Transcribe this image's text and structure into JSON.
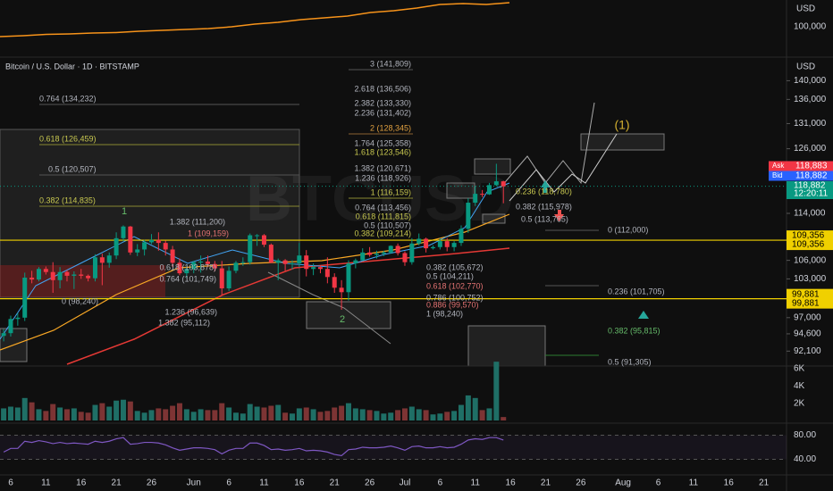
{
  "chart_data": [
    {
      "type": "line",
      "unit": "USD",
      "color": "#f7931a",
      "values": [
        89000,
        90000,
        91500,
        92000,
        93000,
        93500,
        95000,
        96000,
        97000,
        98000,
        100000,
        103000,
        105000,
        108000,
        110000,
        112000,
        116000,
        118000,
        121000,
        125000,
        126000,
        125000,
        127000
      ],
      "ylim": [
        85000,
        130000
      ],
      "yticks": [
        {
          "value": 100000,
          "label": "100,000"
        }
      ]
    },
    {
      "type": "candlestick",
      "title": "Bitcoin / U.S. Dollar · 1D · BITSTAMP",
      "watermark": "BTCUSD",
      "unit": "USD",
      "log_scale": true,
      "up_color": "#089981",
      "down_color": "#f23645",
      "categories": [
        null,
        "6",
        null,
        null,
        null,
        null,
        "11",
        null,
        null,
        null,
        null,
        "16",
        null,
        null,
        null,
        null,
        "21",
        null,
        null,
        null,
        null,
        "26",
        null,
        null,
        null,
        null,
        null,
        "Jun",
        null,
        null,
        null,
        null,
        "6",
        null,
        null,
        null,
        null,
        "11",
        null,
        null,
        null,
        null,
        "16",
        null,
        null,
        null,
        null,
        "21",
        null,
        null,
        null,
        null,
        "26",
        null,
        null,
        null,
        null,
        "Jul",
        null,
        null,
        null,
        null,
        "6",
        null,
        null,
        null,
        null,
        "11",
        null,
        null,
        null,
        null,
        "16",
        null,
        null,
        null,
        null,
        "21",
        null,
        null,
        null,
        null,
        "26",
        null,
        null,
        null,
        null,
        null,
        "Aug",
        null,
        null,
        null,
        null,
        "6",
        null,
        null,
        null,
        null,
        "11",
        null,
        null,
        null,
        null,
        "16",
        null,
        null,
        null,
        null,
        "21"
      ],
      "ohlc": [
        [
          94300,
          95300,
          93500,
          94700
        ],
        [
          94700,
          97300,
          94200,
          96800
        ],
        [
          96800,
          97700,
          95800,
          97000
        ],
        [
          97000,
          104000,
          96500,
          103200
        ],
        [
          103200,
          104300,
          102300,
          102900
        ],
        [
          102900,
          104900,
          102600,
          104600
        ],
        [
          104600,
          105000,
          103700,
          104100
        ],
        [
          104100,
          105700,
          100800,
          102800
        ],
        [
          102800,
          104900,
          101500,
          104100
        ],
        [
          104100,
          104400,
          102600,
          103500
        ],
        [
          103500,
          104200,
          101400,
          103700
        ],
        [
          103700,
          104600,
          103000,
          103500
        ],
        [
          103500,
          103700,
          102600,
          103100
        ],
        [
          103100,
          107000,
          102600,
          106500
        ],
        [
          106500,
          107100,
          102000,
          105600
        ],
        [
          105600,
          107300,
          104800,
          106800
        ],
        [
          106800,
          110700,
          106200,
          109700
        ],
        [
          109700,
          111900,
          109200,
          111700
        ],
        [
          111700,
          111800,
          106900,
          107300
        ],
        [
          107300,
          108700,
          106700,
          107800
        ],
        [
          107800,
          109400,
          106800,
          109000
        ],
        [
          109000,
          110400,
          108700,
          109400
        ],
        [
          109400,
          110700,
          107600,
          108900
        ],
        [
          108900,
          109300,
          106800,
          107800
        ],
        [
          107800,
          108400,
          104900,
          105600
        ],
        [
          105600,
          106300,
          103600,
          103900
        ],
        [
          103900,
          104900,
          103100,
          104600
        ],
        [
          104600,
          105900,
          103900,
          105700
        ],
        [
          105700,
          106800,
          104000,
          105800
        ],
        [
          105800,
          106800,
          104900,
          105400
        ],
        [
          105400,
          105900,
          104200,
          104700
        ],
        [
          104700,
          105900,
          100400,
          101500
        ],
        [
          101500,
          105000,
          101100,
          104300
        ],
        [
          104300,
          105900,
          103900,
          105600
        ],
        [
          105600,
          106500,
          105100,
          105700
        ],
        [
          105700,
          110500,
          105300,
          110200
        ],
        [
          110200,
          110400,
          108400,
          110200
        ],
        [
          110200,
          110400,
          108200,
          108600
        ],
        [
          108600,
          108800,
          105600,
          105600
        ],
        [
          105600,
          106300,
          102800,
          106000
        ],
        [
          106000,
          106200,
          104300,
          105400
        ],
        [
          105400,
          106000,
          104500,
          105500
        ],
        [
          105500,
          108900,
          104900,
          106800
        ],
        [
          106800,
          107700,
          103400,
          104600
        ],
        [
          104600,
          105500,
          103600,
          104900
        ],
        [
          104900,
          105200,
          103900,
          104600
        ],
        [
          104600,
          106500,
          102300,
          103300
        ],
        [
          103300,
          103900,
          100800,
          101600
        ],
        [
          101600,
          102800,
          98200,
          100900
        ],
        [
          100900,
          106000,
          99600,
          105500
        ],
        [
          105500,
          106300,
          104700,
          106000
        ],
        [
          106000,
          108000,
          105900,
          107300
        ],
        [
          107300,
          108200,
          106600,
          106900
        ],
        [
          106900,
          107600,
          106300,
          107100
        ],
        [
          107100,
          107600,
          106700,
          107300
        ],
        [
          107300,
          108500,
          107100,
          108400
        ],
        [
          108400,
          108800,
          106800,
          107200
        ],
        [
          107200,
          107500,
          105100,
          105700
        ],
        [
          105700,
          109700,
          105300,
          108800
        ],
        [
          108800,
          110500,
          108500,
          109600
        ],
        [
          109600,
          109800,
          107300,
          108000
        ],
        [
          108000,
          108500,
          107800,
          108200
        ],
        [
          108200,
          109700,
          107800,
          109200
        ],
        [
          109200,
          109700,
          107500,
          108200
        ],
        [
          108200,
          109200,
          107500,
          108900
        ],
        [
          108900,
          111900,
          108400,
          111300
        ],
        [
          111300,
          116700,
          110600,
          115900
        ],
        [
          115900,
          118900,
          115300,
          117500
        ],
        [
          117500,
          118200,
          116900,
          117400
        ],
        [
          117400,
          119500,
          117300,
          119100
        ],
        [
          119100,
          123100,
          118900,
          119800
        ],
        [
          119800,
          119900,
          115800,
          118883
        ],
        null,
        null,
        null,
        null,
        null,
        null,
        null,
        null,
        null,
        null,
        null,
        null,
        null,
        null,
        null,
        null,
        null,
        null,
        null,
        null,
        null,
        null,
        null,
        null,
        null,
        null,
        null,
        null,
        null,
        null,
        null,
        null,
        null,
        null,
        null,
        null,
        null
      ],
      "ylim": [
        90000,
        145000
      ],
      "yticks": [
        {
          "value": 140000,
          "label": "140,000"
        },
        {
          "value": 136000,
          "label": "136,000"
        },
        {
          "value": 131000,
          "label": "131,000"
        },
        {
          "value": 126000,
          "label": "126,000"
        },
        {
          "value": 114000,
          "label": "114,000"
        },
        {
          "value": 106000,
          "label": "106,000"
        },
        {
          "value": 103000,
          "label": "103,000"
        },
        {
          "value": 97000,
          "label": "97,000"
        },
        {
          "value": 94600,
          "label": "94,600"
        },
        {
          "value": 92100,
          "label": "92,100"
        }
      ],
      "price_lines": [
        {
          "value": 109356,
          "label": "109,356",
          "color": "#f0d000"
        },
        {
          "value": 99881,
          "label": "99,881",
          "color": "#f0d000"
        }
      ],
      "quotes": [
        {
          "name": "Ask",
          "value": 118883,
          "label": "118,883",
          "color": "#f23645"
        },
        {
          "name": "Bid",
          "value": 118882,
          "label": "118,882",
          "color": "#2962ff"
        }
      ],
      "last": {
        "value": 118882,
        "label": "118,882",
        "clock": "12:20:11",
        "color": "#089981"
      },
      "annotations": [
        "0.764 (134,232)",
        "0.618 (126,459)",
        "0.5 (120,507)",
        "0.382 (114,835)",
        "3 (141,809)",
        "2.618 (136,506)",
        "2.382 (133,330)",
        "2.236 (131,402)",
        "2 (128,345)",
        "1.764 (125,358)",
        "1.618 (123,546)",
        "1.382 (120,671)",
        "1.236 (118,926)",
        "1 (116,159)",
        "0.764 (113,456)",
        "0.618 (111,815)",
        "0.5 (110,507)",
        "0.382 (109,214)",
        "0.382 (105,672)",
        "0.5 (104,211)",
        "0.618 (102,770)",
        "0.786 (100,752)",
        "0.886 (99,570)",
        "1 (98,240)",
        "1.382 (111,200)",
        "1 (109,159)",
        "0.618 (103,878)",
        "0.764 (101,749)",
        "0 (98,240)",
        "1.236 (96,639)",
        "1.382 (95,112)",
        "0.236 (118,780)",
        "0.382 (115,978)",
        "0.5 (113,765)",
        "0 (112,000)",
        "0.236 (101,705)",
        "0.382 (95,815)",
        "0.5 (91,305)"
      ],
      "wave_labels": [
        "1",
        "2",
        "(1)"
      ]
    },
    {
      "type": "bar",
      "up_color": "#1f6f66",
      "down_color": "#7d3434",
      "values": [
        1400,
        1600,
        1500,
        2600,
        2100,
        1300,
        1100,
        1900,
        1500,
        1300,
        1400,
        1000,
        900,
        1800,
        2000,
        1600,
        2300,
        2400,
        2200,
        1100,
        900,
        1200,
        1400,
        1300,
        1700,
        2000,
        1300,
        1000,
        1300,
        1200,
        1200,
        2000,
        1500,
        900,
        800,
        1900,
        1600,
        1500,
        1700,
        1800,
        900,
        800,
        1400,
        1500,
        1300,
        1000,
        1100,
        1500,
        1700,
        2000,
        1400,
        1300,
        1200,
        1100,
        800,
        900,
        1200,
        1400,
        1600,
        1300,
        1200,
        700,
        800,
        1000,
        1100,
        1800,
        2900,
        2600,
        1200,
        1400,
        6800,
        400
      ],
      "ylim": [
        0,
        6300
      ],
      "yticks": [
        {
          "value": 6000,
          "label": "6K"
        },
        {
          "value": 4000,
          "label": "4K"
        },
        {
          "value": 2000,
          "label": "2K"
        }
      ]
    },
    {
      "type": "line",
      "color": "#7e57c2",
      "values": [
        52,
        58,
        58,
        70,
        68,
        71,
        69,
        66,
        68,
        66,
        67,
        66,
        65,
        70,
        68,
        70,
        74,
        76,
        65,
        66,
        68,
        68,
        67,
        64,
        59,
        55,
        57,
        59,
        59,
        58,
        56,
        49,
        55,
        58,
        58,
        67,
        67,
        63,
        56,
        57,
        55,
        56,
        58,
        54,
        55,
        54,
        52,
        48,
        46,
        56,
        57,
        60,
        59,
        59,
        60,
        62,
        59,
        55,
        61,
        62,
        59,
        59,
        61,
        59,
        60,
        65,
        72,
        74,
        73,
        76,
        76,
        72
      ],
      "ylim": [
        14,
        100
      ],
      "yticks": [
        {
          "value": 80,
          "label": "80.00"
        },
        {
          "value": 40,
          "label": "40.00"
        }
      ]
    }
  ]
}
